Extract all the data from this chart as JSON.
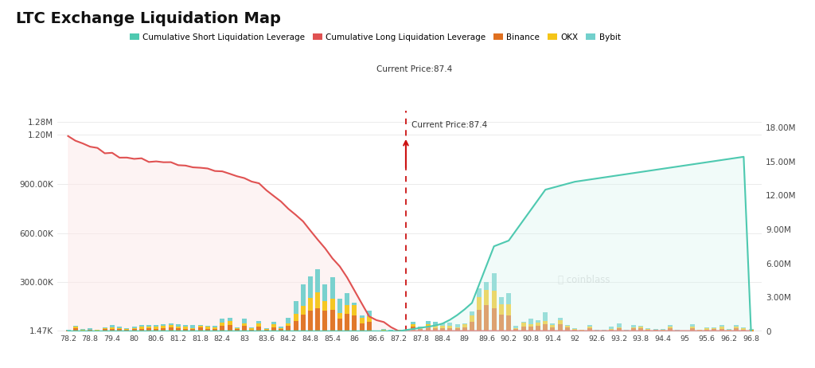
{
  "title": "LTC Exchange Liquidation Map",
  "current_price": 87.4,
  "colors": {
    "short_liq_line": "#e05252",
    "short_liq_fill": "#fde8e8",
    "long_liq_line": "#4ec9b0",
    "long_liq_fill": "#d8f5f0",
    "binance": "#e07020",
    "okx": "#f5c518",
    "bybit": "#72d0cc",
    "current_price_line": "#cc1111",
    "background": "#ffffff",
    "grid": "#e8e8e8"
  },
  "left_yticks": [
    1470,
    300000,
    600000,
    900000,
    1200000,
    1280000
  ],
  "left_yticklabels": [
    "1.47K",
    "300.00K",
    "600.00K",
    "900.00K",
    "1.20M",
    "1.28M"
  ],
  "right_yticks": [
    0,
    3000000,
    6000000,
    9000000,
    12000000,
    15000000,
    18000000
  ],
  "right_yticklabels": [
    "0",
    "3.00M",
    "6.00M",
    "9.00M",
    "12.00M",
    "15.00M",
    "18.00M"
  ],
  "x_ticks": [
    78.2,
    78.8,
    79.4,
    80.0,
    80.6,
    81.2,
    81.8,
    82.4,
    83.0,
    83.6,
    84.2,
    84.8,
    85.4,
    86.0,
    86.6,
    87.2,
    87.8,
    88.4,
    89.0,
    89.6,
    90.2,
    90.8,
    91.4,
    92.0,
    92.6,
    93.2,
    93.8,
    94.4,
    95.0,
    95.6,
    96.2,
    96.8
  ],
  "legend": [
    "Cumulative Short Liquidation Leverage",
    "Cumulative Long Liquidation Leverage",
    "Binance",
    "OKX",
    "Bybit"
  ]
}
